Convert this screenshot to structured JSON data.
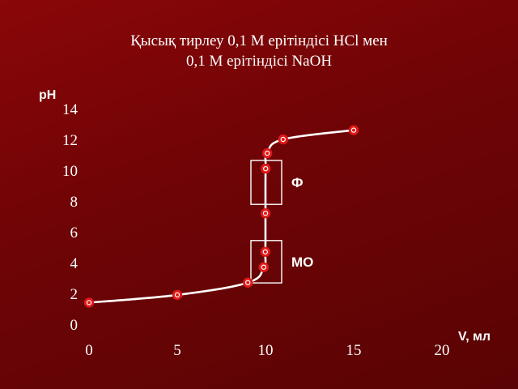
{
  "slide": {
    "title_line1": "Қысық тирлеу 0,1 М ерітіндісі НСl мен",
    "title_line2": "0,1 М ерітіндісі NaOH"
  },
  "colors": {
    "background": "#7a0507",
    "text": "#ffffff",
    "curve": "#ffffff",
    "marker_fill": "#e01818",
    "marker_ring": "#ffffff"
  },
  "chart_data": {
    "type": "line",
    "title": "Қысық тирлеу 0,1 М ерітіндісі НСl мен 0,1 М ерітіндісі NaOH",
    "xlabel": "V, мл",
    "ylabel": "pH",
    "xlim": [
      0,
      20
    ],
    "ylim": [
      0,
      14
    ],
    "x_ticks": [
      "0",
      "5",
      "10",
      "15",
      "20"
    ],
    "y_ticks": [
      "0",
      "2",
      "4",
      "6",
      "8",
      "10",
      "12",
      "14"
    ],
    "grid": false,
    "series": [
      {
        "points": [
          {
            "x": 0,
            "y": 1.4
          },
          {
            "x": 5,
            "y": 1.9
          },
          {
            "x": 9,
            "y": 2.7
          },
          {
            "x": 9.9,
            "y": 3.7
          },
          {
            "x": 9.99,
            "y": 4.7
          },
          {
            "x": 10,
            "y": 7.2
          },
          {
            "x": 10.01,
            "y": 10.1
          },
          {
            "x": 10.1,
            "y": 11.1
          },
          {
            "x": 11,
            "y": 12.0
          },
          {
            "x": 15,
            "y": 12.6
          }
        ]
      }
    ],
    "annotations": [
      {
        "label": "Ф",
        "indicator": "phenolphthalein",
        "y_range": [
          8.2,
          10.0
        ]
      },
      {
        "label": "МО",
        "indicator": "methyl-orange",
        "y_range": [
          3.1,
          4.8
        ]
      }
    ]
  }
}
